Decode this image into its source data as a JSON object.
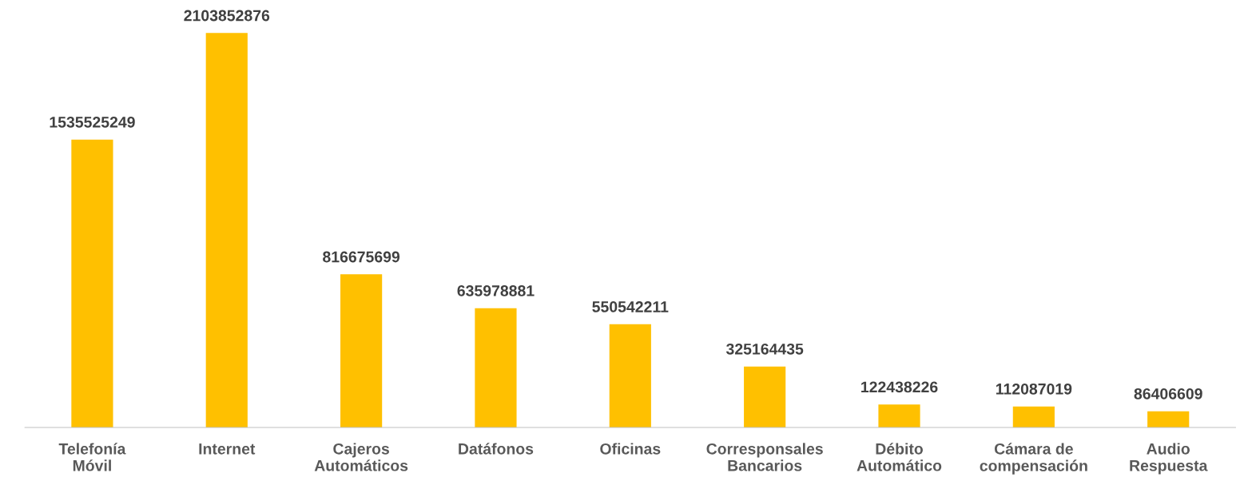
{
  "chart_data": {
    "type": "bar",
    "categories": [
      "Telefonía\nMóvil",
      "Internet",
      "Cajeros\nAutomáticos",
      "Datáfonos",
      "Oficinas",
      "Corresponsales\nBancarios",
      "Débito\nAutomático",
      "Cámara de\ncompensación",
      "Audio\nRespuesta"
    ],
    "values": [
      1535525249,
      2103852876,
      816675699,
      635978881,
      550542211,
      325164435,
      122438226,
      112087019,
      86406609
    ],
    "color": "#ffc000",
    "data_labels": true,
    "grid": false,
    "legend": false
  }
}
